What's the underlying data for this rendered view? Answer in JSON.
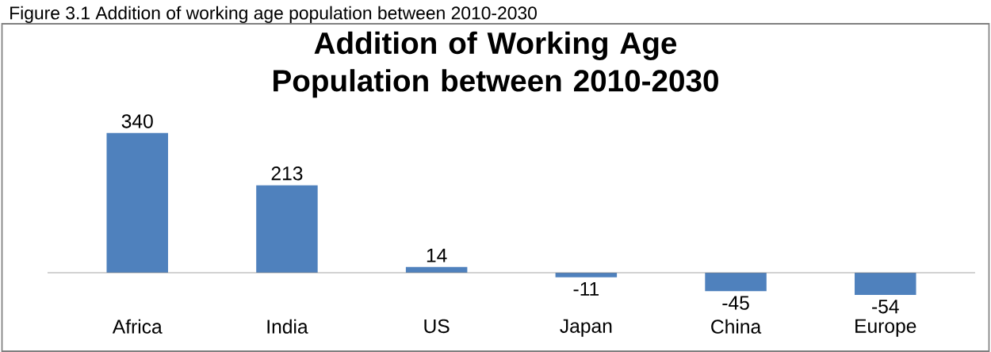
{
  "chart_data": {
    "type": "bar",
    "title": "Addition of Working Age Population between 2010-2030",
    "categories": [
      "Africa",
      "India",
      "US",
      "Japan",
      "China",
      "Europe"
    ],
    "values": [
      340,
      213,
      14,
      -11,
      -45,
      -54
    ],
    "color": "#4f81bd",
    "data_labels": true,
    "annotations": [
      "Figure 3.1 Addition of working age population between 2010-2030"
    ]
  }
}
